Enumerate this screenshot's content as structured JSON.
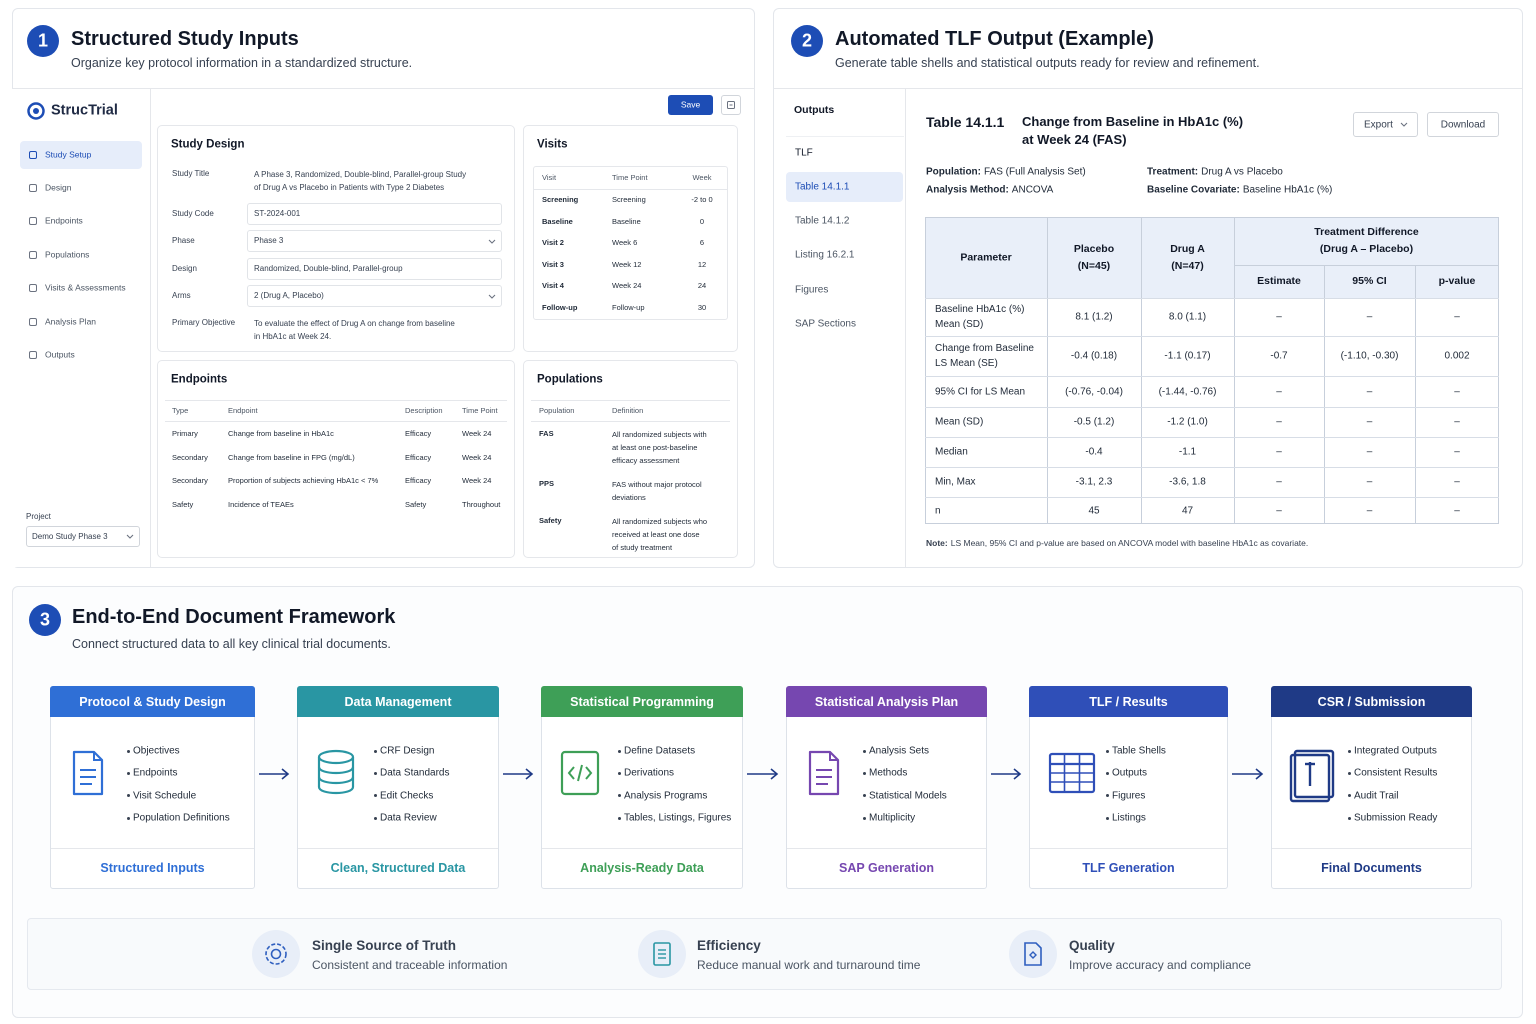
{
  "panel1": {
    "number": "1",
    "title": "Structured Study Inputs",
    "subtitle": "Organize key protocol information in a standardized structure.",
    "app": {
      "brand": "StrucTrial",
      "save": "Save",
      "nav": [
        "Study Setup",
        "Design",
        "Endpoints",
        "Populations",
        "Visits & Assessments",
        "Analysis Plan",
        "Outputs"
      ],
      "project_label": "Project",
      "project": "Demo Study Phase 3",
      "study_design": {
        "title": "Study Design",
        "fields": [
          {
            "label": "Study Title",
            "value": "A Phase 3, Randomized, Double-blind, Parallel-group Study\nof Drug A vs Placebo in Patients with Type 2 Diabetes"
          },
          {
            "label": "Study Code",
            "value": "ST-2024-001"
          },
          {
            "label": "Phase",
            "value": "Phase 3"
          },
          {
            "label": "Design",
            "value": "Randomized, Double-blind, Parallel-group"
          },
          {
            "label": "Arms",
            "value": "2 (Drug A, Placebo)"
          },
          {
            "label": "Primary Objective",
            "value": "To evaluate the effect of Drug A on change from baseline\nin HbA1c at Week 24."
          }
        ]
      },
      "visits": {
        "title": "Visits",
        "columns": [
          "Visit",
          "Time Point",
          "Week"
        ],
        "rows": [
          [
            "Screening",
            "Screening",
            "-2 to 0"
          ],
          [
            "Baseline",
            "Baseline",
            "0"
          ],
          [
            "Visit 2",
            "Week 6",
            "6"
          ],
          [
            "Visit 3",
            "Week 12",
            "12"
          ],
          [
            "Visit 4",
            "Week 24",
            "24"
          ],
          [
            "Follow-up",
            "Follow-up",
            "30"
          ]
        ]
      },
      "endpoints": {
        "title": "Endpoints",
        "columns": [
          "Type",
          "Endpoint",
          "Description",
          "Time Point"
        ],
        "rows": [
          [
            "Primary",
            "Change from baseline in HbA1c",
            "Efficacy",
            "Week 24"
          ],
          [
            "Secondary",
            "Change from baseline in FPG (mg/dL)",
            "Efficacy",
            "Week 24"
          ],
          [
            "Secondary",
            "Proportion of subjects achieving HbA1c < 7%",
            "Efficacy",
            "Week 24"
          ],
          [
            "Safety",
            "Incidence of TEAEs",
            "Safety",
            "Throughout"
          ]
        ]
      },
      "populations": {
        "title": "Populations",
        "columns": [
          "Population",
          "Definition"
        ],
        "rows": [
          [
            "FAS",
            "All randomized subjects with\nat least one post-baseline\nefficacy assessment"
          ],
          [
            "PPS",
            "FAS without major protocol\ndeviations"
          ],
          [
            "Safety",
            "All randomized subjects who\nreceived at least one dose\nof study treatment"
          ]
        ]
      }
    }
  },
  "panel2": {
    "number": "2",
    "title": "Automated TLF Output (Example)",
    "subtitle": "Generate table shells and statistical outputs ready for review and refinement.",
    "sidebar_title": "Outputs",
    "sidebar": [
      "TLF",
      "Table 14.1.1",
      "Table 14.1.2",
      "Listing 16.2.1",
      "Figures",
      "SAP Sections"
    ],
    "table_id": "Table 14.1.1",
    "table_title": "Change from Baseline in HbA1c (%)\nat Week 24 (FAS)",
    "export": "Export",
    "download": "Download",
    "meta": [
      {
        "label": "Population:",
        "value": "FAS (Full Analysis Set)"
      },
      {
        "label": "Treatment:",
        "value": "Drug A vs Placebo"
      },
      {
        "label": "Analysis Method:",
        "value": "ANCOVA"
      },
      {
        "label": "Baseline Covariate:",
        "value": "Baseline HbA1c (%)"
      }
    ],
    "table": {
      "header": [
        "Parameter",
        "Placebo\n(N=45)",
        "Drug A\n(N=47)"
      ],
      "group": "Treatment Difference\n(Drug A – Placebo)",
      "subheader": [
        "Estimate",
        "95% CI",
        "p-value"
      ],
      "rows": [
        [
          "Baseline HbA1c (%)\nMean (SD)",
          "8.1 (1.2)",
          "8.0 (1.1)",
          "–",
          "–",
          "–"
        ],
        [
          "Change from Baseline\nLS Mean (SE)",
          "-0.4 (0.18)",
          "-1.1 (0.17)",
          "-0.7",
          "(-1.10, -0.30)",
          "0.002"
        ],
        [
          "95% CI for LS Mean",
          "(-0.76, -0.04)",
          "(-1.44, -0.76)",
          "–",
          "–",
          "–"
        ],
        [
          "Mean (SD)",
          "-0.5 (1.2)",
          "-1.2 (1.0)",
          "–",
          "–",
          "–"
        ],
        [
          "Median",
          "-0.4",
          "-1.1",
          "–",
          "–",
          "–"
        ],
        [
          "Min, Max",
          "-3.1, 2.3",
          "-3.6, 1.8",
          "–",
          "–",
          "–"
        ],
        [
          "n",
          "45",
          "47",
          "–",
          "–",
          "–"
        ]
      ]
    },
    "note": {
      "label": "Note:",
      "text": "LS Mean, 95% CI and p-value are based on ANCOVA model with baseline HbA1c as covariate."
    }
  },
  "panel3": {
    "number": "3",
    "title": "End-to-End Document Framework",
    "subtitle": "Connect structured data to all key clinical trial documents.",
    "stages": [
      {
        "title": "Protocol & Study Design",
        "color": "#2f6fd6",
        "items": [
          "Objectives",
          "Endpoints",
          "Visit Schedule",
          "Population Definitions"
        ],
        "footer": "Structured Inputs"
      },
      {
        "title": "Data Management",
        "color": "#2996a3",
        "items": [
          "CRF Design",
          "Data Standards",
          "Edit Checks",
          "Data Review"
        ],
        "footer": "Clean, Structured Data"
      },
      {
        "title": "Statistical Programming",
        "color": "#3e9f57",
        "items": [
          "Define Datasets",
          "Derivations",
          "Analysis Programs",
          "Tables, Listings, Figures"
        ],
        "footer": "Analysis-Ready Data"
      },
      {
        "title": "Statistical Analysis Plan",
        "color": "#7647b0",
        "items": [
          "Analysis Sets",
          "Methods",
          "Statistical Models",
          "Multiplicity"
        ],
        "footer": "SAP Generation"
      },
      {
        "title": "TLF / Results",
        "color": "#2f4fb8",
        "items": [
          "Table Shells",
          "Outputs",
          "Figures",
          "Listings"
        ],
        "footer": "TLF Generation"
      },
      {
        "title": "CSR / Submission",
        "color": "#1f3a86",
        "items": [
          "Integrated Outputs",
          "Consistent Results",
          "Audit Trail",
          "Submission Ready"
        ],
        "footer": "Final Documents"
      }
    ],
    "benefits": [
      {
        "title": "Single Source of Truth",
        "text": "Consistent and traceable information"
      },
      {
        "title": "Efficiency",
        "text": "Reduce manual work and turnaround time"
      },
      {
        "title": "Quality",
        "text": "Improve accuracy and compliance"
      }
    ]
  }
}
